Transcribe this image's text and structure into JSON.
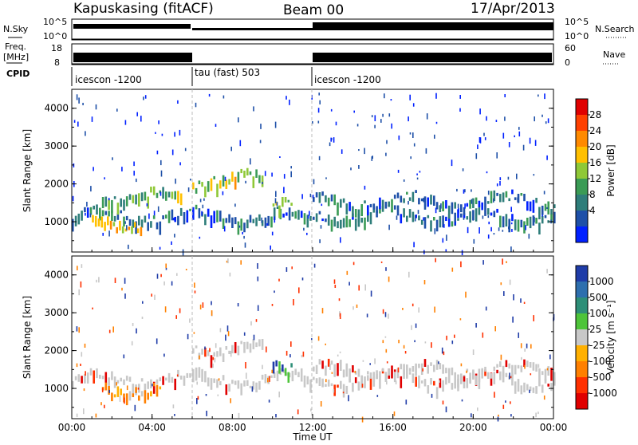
{
  "header": {
    "station": "Kapuskasing (fitACF)",
    "beam": "Beam 00",
    "date": "17/Apr/2013"
  },
  "strips": {
    "nsky_label": "N.Sky",
    "nsky_ticks": [
      "10^5",
      "10^0"
    ],
    "nsearch_label": "N.Search",
    "nsearch_ticks": [
      "10^5",
      "10^0"
    ],
    "freq_label_1": "Freq.",
    "freq_label_2": "[MHz]",
    "freq_ticks": [
      "18",
      "8"
    ],
    "nave_label": "Nave",
    "nave_ticks": [
      "60",
      "0"
    ],
    "cpid_label": "CPID",
    "cpid_segments": [
      "icescon -1200",
      "tau (fast) 503",
      "icescon -1200"
    ]
  },
  "power_panel": {
    "ylabel": "Slant Range [km]",
    "yticks": [
      "4000",
      "3000",
      "2000",
      "1000"
    ],
    "colorbar_label": "Power [dB]",
    "colorbar_ticks": [
      "28",
      "24",
      "20",
      "16",
      "12",
      "8",
      "4"
    ],
    "colors": [
      "#0020ff",
      "#1e50a8",
      "#2e7d7a",
      "#3a9b55",
      "#8fc837",
      "#ffc000",
      "#ff8a00",
      "#ff4000",
      "#e00000"
    ]
  },
  "velocity_panel": {
    "ylabel": "Slant Range [km]",
    "yticks": [
      "4000",
      "3000",
      "2000",
      "1000"
    ],
    "colorbar_label": "Velocity [m s⁻¹]",
    "colorbar_ticks": [
      "1000",
      "500",
      "100",
      "25",
      "-25",
      "-100",
      "-500",
      "-1000"
    ],
    "colors": [
      "#1f3ca8",
      "#2e6fae",
      "#2e8f78",
      "#4ec43a",
      "#c8c8c8",
      "#ffb000",
      "#ff8000",
      "#ff3000",
      "#e00000"
    ]
  },
  "xaxis": {
    "label": "Time UT",
    "ticks": [
      "00:00",
      "04:00",
      "08:00",
      "12:00",
      "16:00",
      "20:00",
      "00:00"
    ]
  },
  "chart_data": [
    {
      "type": "heatmap",
      "title": "Power",
      "xlabel": "Time UT",
      "ylabel": "Slant Range [km]",
      "xlim_hours": [
        0,
        24
      ],
      "ylim": [
        200,
        4500
      ],
      "colorbar_range_db": [
        0,
        30
      ],
      "x": [
        "00:00",
        "04:00",
        "08:00",
        "12:00",
        "16:00",
        "20:00",
        "00:00"
      ],
      "bands": [
        {
          "time_start_h": 0.0,
          "time_end_h": 24.0,
          "range_km": 1200,
          "value_db": 6
        },
        {
          "time_start_h": 1.0,
          "time_end_h": 3.5,
          "range_km": 1050,
          "value_db": 20
        },
        {
          "time_start_h": 1.5,
          "time_end_h": 5.5,
          "range_km": 1700,
          "value_db": 12
        },
        {
          "time_start_h": 6.0,
          "time_end_h": 9.5,
          "range_km": 2150,
          "value_db": 16
        },
        {
          "time_start_h": 10.0,
          "time_end_h": 11.0,
          "range_km": 1700,
          "value_db": 14
        },
        {
          "time_start_h": 12.0,
          "time_end_h": 24.0,
          "range_km": 1600,
          "value_db": 6
        }
      ]
    },
    {
      "type": "heatmap",
      "title": "Velocity",
      "xlabel": "Time UT",
      "ylabel": "Slant Range [km]",
      "xlim_hours": [
        0,
        24
      ],
      "ylim": [
        200,
        4500
      ],
      "colorbar_range": [
        -1000,
        1000
      ],
      "x": [
        "00:00",
        "04:00",
        "08:00",
        "12:00",
        "16:00",
        "20:00",
        "00:00"
      ],
      "bands": [
        {
          "time_start_h": 0.0,
          "time_end_h": 24.0,
          "range_km": 1300,
          "value": 0
        },
        {
          "time_start_h": 1.5,
          "time_end_h": 4.5,
          "range_km": 1050,
          "value": -300
        },
        {
          "time_start_h": 6.0,
          "time_end_h": 9.5,
          "range_km": 2150,
          "value": 0
        },
        {
          "time_start_h": 10.0,
          "time_end_h": 11.0,
          "range_km": 1700,
          "value": 300
        },
        {
          "time_start_h": 12.0,
          "time_end_h": 24.0,
          "range_km": 1550,
          "value": 0
        }
      ]
    }
  ]
}
